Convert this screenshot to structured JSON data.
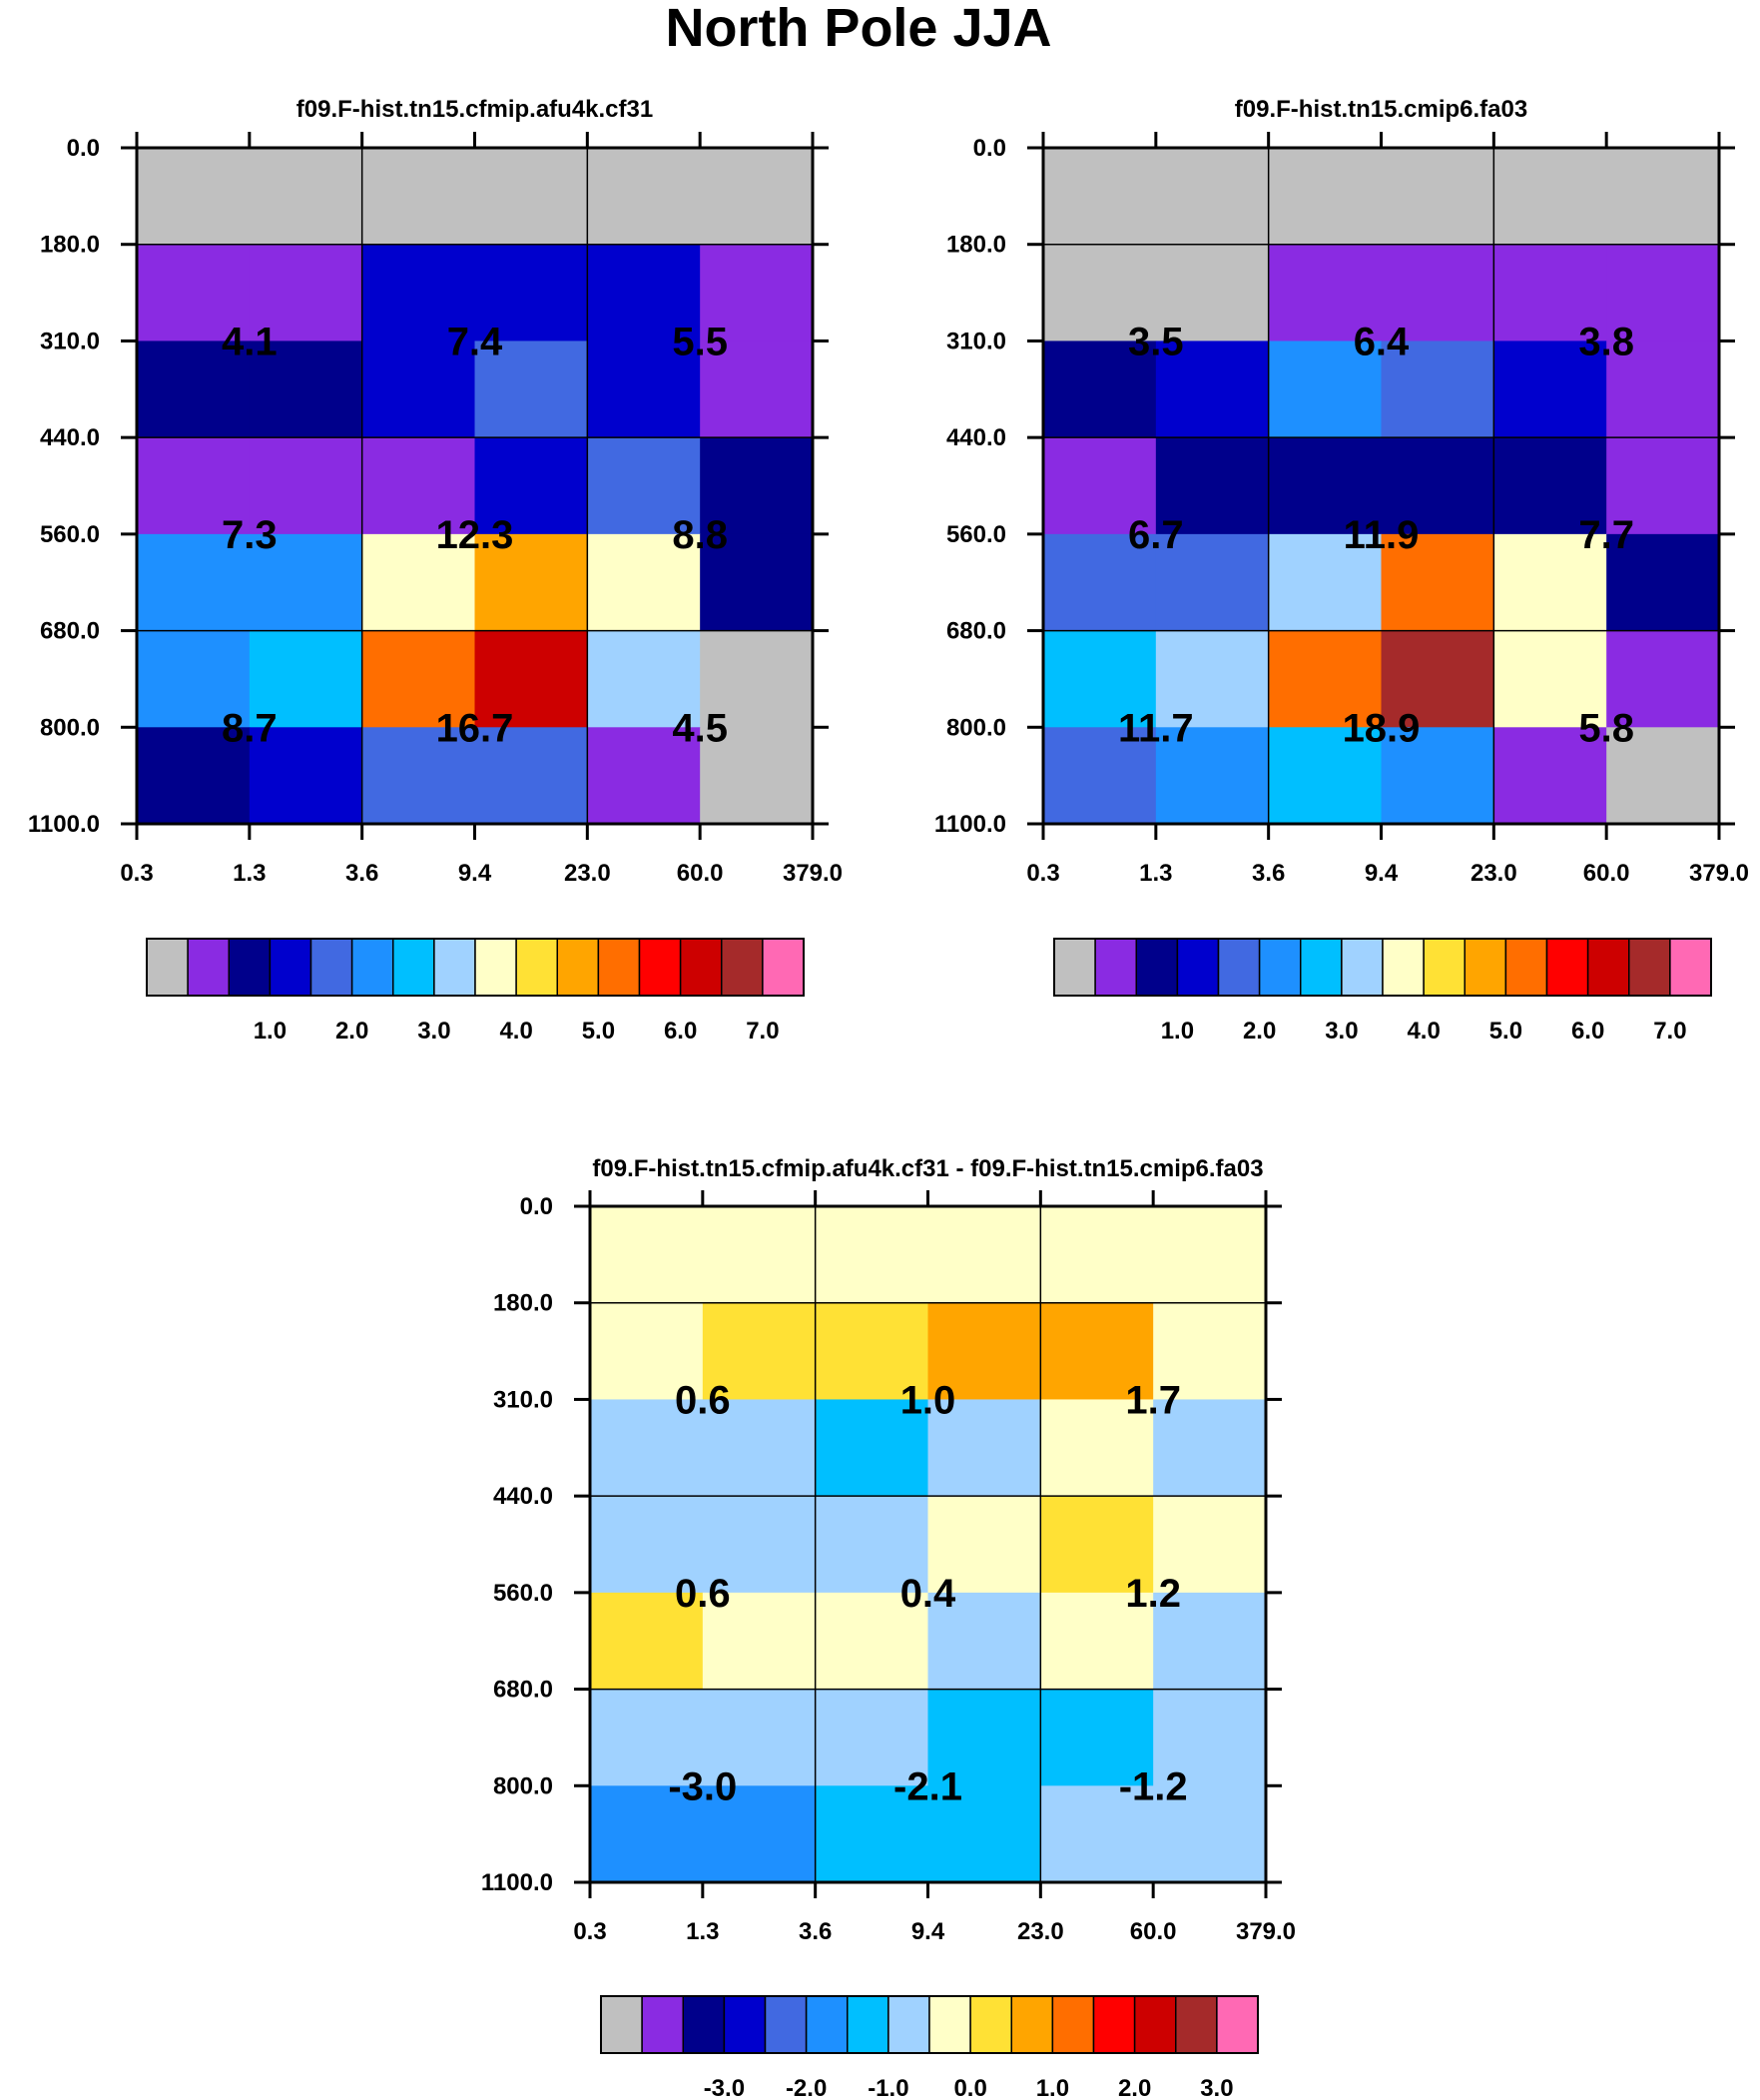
{
  "title": "North Pole JJA",
  "palette": {
    "missing": "#c0c0c0",
    "colors": [
      "#c0c0c0",
      "#8a2be2",
      "#00008b",
      "#0000cd",
      "#4169e1",
      "#1e90ff",
      "#00bfff",
      "#a0d2ff",
      "#ffffc8",
      "#ffe135",
      "#ffa500",
      "#ff6e00",
      "#ff0000",
      "#cd0000",
      "#a52a2a",
      "#ff69b4"
    ]
  },
  "chart_data": [
    {
      "type": "heatmap",
      "name": "panel-cf31",
      "title": "f09.F-hist.tn15.cfmip.afu4k.cf31",
      "xlabel": "",
      "ylabel": "",
      "x_tick_labels": [
        "0.3",
        "1.3",
        "3.6",
        "9.4",
        "23.0",
        "60.0",
        "379.0"
      ],
      "y_tick_labels": [
        "0.0",
        "180.0",
        "310.0",
        "440.0",
        "560.0",
        "680.0",
        "800.0",
        "1100.0"
      ],
      "cells": [
        [
          0,
          0,
          0,
          0,
          0,
          0
        ],
        [
          1,
          1,
          3,
          3,
          3,
          1
        ],
        [
          2,
          2,
          3,
          4,
          3,
          1
        ],
        [
          1,
          1,
          1,
          3,
          4,
          2
        ],
        [
          5,
          5,
          8,
          10,
          8,
          2
        ],
        [
          5,
          6,
          11,
          13,
          7,
          0
        ],
        [
          2,
          3,
          4,
          4,
          1,
          0
        ]
      ],
      "totals": [
        [
          "4.1",
          "7.4",
          "5.5"
        ],
        [
          "7.3",
          "12.3",
          "8.8"
        ],
        [
          "8.7",
          "16.7",
          "4.5"
        ]
      ],
      "colorbar_labels": [
        "1.0",
        "2.0",
        "3.0",
        "4.0",
        "5.0",
        "6.0",
        "7.0"
      ]
    },
    {
      "type": "heatmap",
      "name": "panel-fa03",
      "title": "f09.F-hist.tn15.cmip6.fa03",
      "xlabel": "",
      "ylabel": "",
      "x_tick_labels": [
        "0.3",
        "1.3",
        "3.6",
        "9.4",
        "23.0",
        "60.0",
        "379.0"
      ],
      "y_tick_labels": [
        "0.0",
        "180.0",
        "310.0",
        "440.0",
        "560.0",
        "680.0",
        "800.0",
        "1100.0"
      ],
      "cells": [
        [
          0,
          0,
          0,
          0,
          0,
          0
        ],
        [
          0,
          0,
          1,
          1,
          1,
          1
        ],
        [
          2,
          3,
          5,
          4,
          3,
          1
        ],
        [
          1,
          2,
          2,
          2,
          2,
          1
        ],
        [
          4,
          4,
          7,
          11,
          8,
          2
        ],
        [
          6,
          7,
          11,
          14,
          8,
          1
        ],
        [
          4,
          5,
          6,
          5,
          1,
          0
        ]
      ],
      "totals": [
        [
          "3.5",
          "6.4",
          "3.8"
        ],
        [
          "6.7",
          "11.9",
          "7.7"
        ],
        [
          "11.7",
          "18.9",
          "5.8"
        ]
      ],
      "colorbar_labels": [
        "1.0",
        "2.0",
        "3.0",
        "4.0",
        "5.0",
        "6.0",
        "7.0"
      ]
    },
    {
      "type": "heatmap",
      "name": "panel-diff",
      "title": "f09.F-hist.tn15.cfmip.afu4k.cf31 - f09.F-hist.tn15.cmip6.fa03",
      "xlabel": "",
      "ylabel": "",
      "x_tick_labels": [
        "0.3",
        "1.3",
        "3.6",
        "9.4",
        "23.0",
        "60.0",
        "379.0"
      ],
      "y_tick_labels": [
        "0.0",
        "180.0",
        "310.0",
        "440.0",
        "560.0",
        "680.0",
        "800.0",
        "1100.0"
      ],
      "cells": [
        [
          8,
          8,
          8,
          8,
          8,
          8
        ],
        [
          8,
          9,
          9,
          10,
          10,
          8
        ],
        [
          7,
          7,
          6,
          7,
          8,
          7
        ],
        [
          7,
          7,
          7,
          8,
          9,
          8
        ],
        [
          9,
          8,
          8,
          7,
          8,
          7
        ],
        [
          7,
          7,
          7,
          6,
          6,
          7
        ],
        [
          5,
          5,
          6,
          6,
          7,
          7
        ]
      ],
      "totals": [
        [
          "0.6",
          "1.0",
          "1.7"
        ],
        [
          "0.6",
          "0.4",
          "1.2"
        ],
        [
          "-3.0",
          "-2.1",
          "-1.2"
        ]
      ],
      "colorbar_labels": [
        "-3.0",
        "-2.0",
        "-1.0",
        "0.0",
        "1.0",
        "2.0",
        "3.0"
      ]
    }
  ]
}
